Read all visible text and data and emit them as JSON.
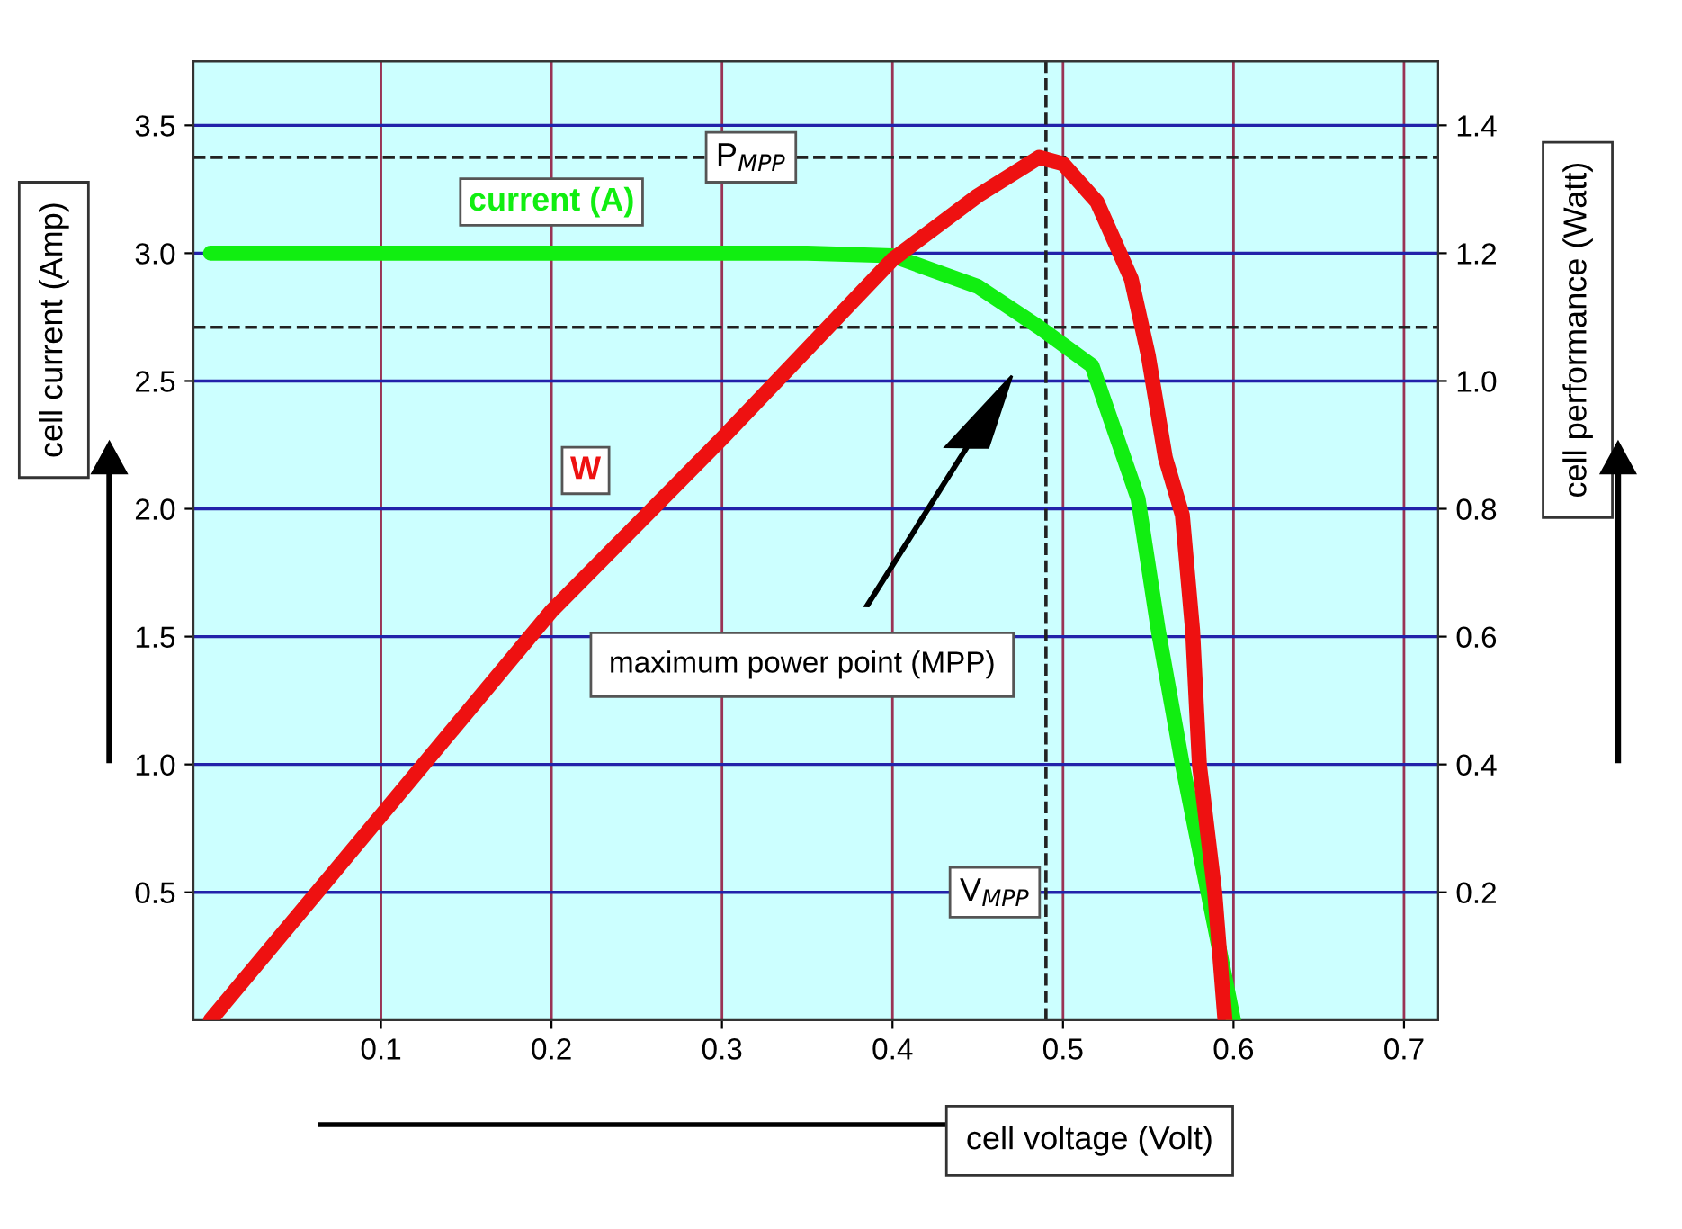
{
  "chart_data": {
    "type": "line",
    "xlabel": "cell voltage (Volt)",
    "ylabel": "cell current (Amp)",
    "y2label": "cell performance (Watt)",
    "series": [
      {
        "name": "current (A)",
        "color": "#11ee11",
        "x": [
          0,
          0.1,
          0.2,
          0.3,
          0.35,
          0.4,
          0.45,
          0.486,
          0.517,
          0.544,
          0.556,
          0.57,
          0.585,
          0.6
        ],
        "values": [
          3.0,
          3.0,
          3.0,
          3.0,
          3.0,
          2.99,
          2.87,
          2.71,
          2.56,
          2.04,
          1.52,
          1.0,
          0.5,
          0
        ]
      },
      {
        "name": "W",
        "color": "#ee1111",
        "axis": "y2",
        "x": [
          0,
          0.1,
          0.2,
          0.3,
          0.4,
          0.45,
          0.486,
          0.5,
          0.52,
          0.54,
          0.55,
          0.56,
          0.57,
          0.576,
          0.58,
          0.589,
          0.595
        ],
        "values": [
          0,
          0.32,
          0.64,
          0.91,
          1.19,
          1.29,
          1.35,
          1.34,
          1.28,
          1.16,
          1.04,
          0.88,
          0.79,
          0.61,
          0.4,
          0.2,
          0
        ]
      }
    ],
    "xlim": [
      -0.01,
      0.72
    ],
    "xticks": [
      0.1,
      0.2,
      0.3,
      0.4,
      0.5,
      0.6,
      0.7
    ],
    "ylim": [
      0,
      3.75
    ],
    "yticks": [
      0.5,
      {
        "value": 1,
        "label": "1.0"
      },
      1.5,
      {
        "value": 2,
        "label": "2.0"
      },
      2.5,
      {
        "value": 3,
        "label": "3.0"
      },
      3.5
    ],
    "y2lim": [
      0,
      1.5
    ],
    "y2ticks": [
      0.2,
      0.4,
      0.6,
      0.8,
      {
        "value": 1,
        "label": "1.0"
      },
      1.2,
      1.4
    ],
    "ref_lines": [
      {
        "axis": "x",
        "value": 0.49,
        "label": "V$_{MPP}$",
        "line_style": "dashed"
      },
      {
        "axis": "y",
        "value": 2.71,
        "line_style": "dashed"
      },
      {
        "axis": "y2",
        "value": 1.35,
        "label": "P$_{MPP}$",
        "line_style": "dashed"
      }
    ],
    "annotations": [
      "maximum power point (MPP)"
    ],
    "grid": true,
    "legend": false,
    "marker": "none",
    "line_style": "solid"
  }
}
